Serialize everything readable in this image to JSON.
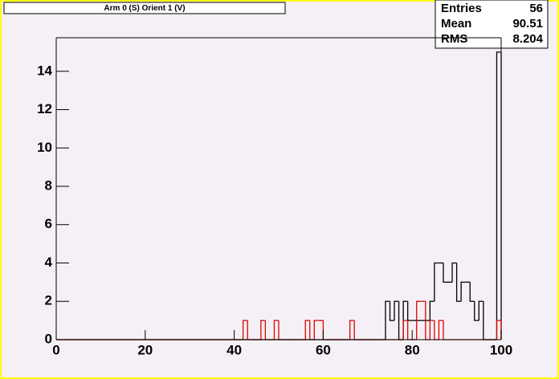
{
  "chart_data": {
    "type": "histogram",
    "title": "Arm 0 (S) Orient 1 (V)",
    "stats": [
      {
        "label": "Entries",
        "value": "56"
      },
      {
        "label": "Mean",
        "value": "90.51"
      },
      {
        "label": "RMS",
        "value": "8.204"
      }
    ],
    "bins": [
      0,
      1,
      2,
      3,
      4,
      5,
      6,
      7,
      8,
      9,
      10,
      11,
      12,
      13,
      14,
      15,
      16,
      17,
      18,
      19,
      20,
      21,
      22,
      23,
      24,
      25,
      26,
      27,
      28,
      29,
      30,
      31,
      32,
      33,
      34,
      35,
      36,
      37,
      38,
      39,
      40,
      41,
      42,
      43,
      44,
      45,
      46,
      47,
      48,
      49,
      50,
      51,
      52,
      53,
      54,
      55,
      56,
      57,
      58,
      59,
      60,
      61,
      62,
      63,
      64,
      65,
      66,
      67,
      68,
      69,
      70,
      71,
      72,
      73,
      74,
      75,
      76,
      77,
      78,
      79,
      80,
      81,
      82,
      83,
      84,
      85,
      86,
      87,
      88,
      89,
      90,
      91,
      92,
      93,
      94,
      95,
      96,
      97,
      98,
      99,
      100
    ],
    "series": [
      {
        "color": "#000000",
        "values": [
          0,
          0,
          0,
          0,
          0,
          0,
          0,
          0,
          0,
          0,
          0,
          0,
          0,
          0,
          0,
          0,
          0,
          0,
          0,
          0,
          0,
          0,
          0,
          0,
          0,
          0,
          0,
          0,
          0,
          0,
          0,
          0,
          0,
          0,
          0,
          0,
          0,
          0,
          0,
          0,
          0,
          0,
          0,
          0,
          0,
          0,
          0,
          0,
          0,
          0,
          0,
          0,
          0,
          0,
          0,
          0,
          0,
          0,
          0,
          0,
          0,
          0,
          0,
          0,
          0,
          0,
          0,
          0,
          0,
          0,
          0,
          0,
          0,
          0,
          2,
          1,
          2,
          0,
          2,
          1,
          1,
          1,
          1,
          1,
          2,
          4,
          4,
          3,
          3,
          4,
          2,
          3,
          3,
          2,
          1,
          2,
          0,
          0,
          0,
          15
        ]
      },
      {
        "color": "#e00000",
        "values": [
          0,
          0,
          0,
          0,
          0,
          0,
          0,
          0,
          0,
          0,
          0,
          0,
          0,
          0,
          0,
          0,
          0,
          0,
          0,
          0,
          0,
          0,
          0,
          0,
          0,
          0,
          0,
          0,
          0,
          0,
          0,
          0,
          0,
          0,
          0,
          0,
          0,
          0,
          0,
          0,
          0,
          0,
          1,
          0,
          0,
          0,
          1,
          0,
          0,
          1,
          0,
          0,
          0,
          0,
          0,
          0,
          1,
          0,
          1,
          1,
          0,
          0,
          0,
          0,
          0,
          0,
          1,
          0,
          0,
          0,
          0,
          0,
          0,
          0,
          0,
          0,
          0,
          0,
          1,
          0,
          0,
          2,
          2,
          0,
          1,
          0,
          1,
          0,
          0,
          0,
          0,
          0,
          0,
          0,
          0,
          0,
          0,
          0,
          0,
          1
        ]
      }
    ],
    "xlim": [
      0,
      100
    ],
    "xticks": [
      0,
      20,
      40,
      60,
      80,
      100
    ],
    "ylim": [
      0,
      15.75
    ],
    "yticks": [
      0,
      2,
      4,
      6,
      8,
      10,
      12,
      14
    ]
  }
}
